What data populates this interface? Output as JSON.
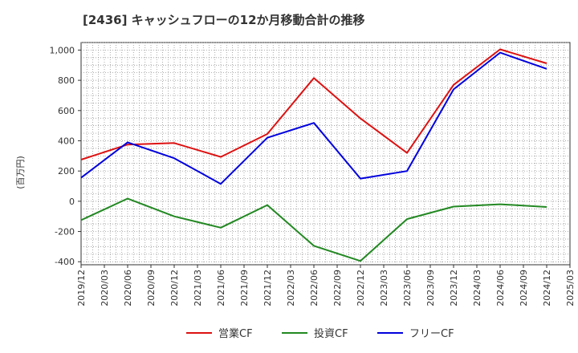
{
  "chart_data": {
    "type": "line",
    "title": "[2436]  キャッシュフローの12か月移動合計の推移",
    "xlabel": "",
    "ylabel": "(百万円)",
    "ylim": [
      -420,
      1050
    ],
    "yticks": [
      -400,
      -200,
      0,
      200,
      400,
      600,
      800,
      "1,000"
    ],
    "x": [
      "2019/12",
      "2020/03",
      "2020/06",
      "2020/09",
      "2020/12",
      "2021/03",
      "2021/06",
      "2021/09",
      "2021/12",
      "2022/03",
      "2022/06",
      "2022/09",
      "2022/12",
      "2023/03",
      "2023/06",
      "2023/09",
      "2023/12",
      "2024/03",
      "2024/06",
      "2024/09",
      "2024/12",
      "2025/03"
    ],
    "grid": true,
    "legend_position": "bottom",
    "series": [
      {
        "name": "営業CF",
        "color": "#dd1111",
        "x": [
          "2019/12",
          "2020/06",
          "2020/12",
          "2021/06",
          "2021/12",
          "2022/06",
          "2022/12",
          "2023/06",
          "2023/12",
          "2024/06",
          "2024/12"
        ],
        "values": [
          275,
          375,
          385,
          293,
          445,
          815,
          548,
          320,
          770,
          1005,
          912
        ]
      },
      {
        "name": "投資CF",
        "color": "#228822",
        "x": [
          "2019/12",
          "2020/06",
          "2020/12",
          "2021/06",
          "2021/12",
          "2022/06",
          "2022/12",
          "2023/06",
          "2023/12",
          "2024/06",
          "2024/12"
        ],
        "values": [
          -125,
          18,
          -100,
          -175,
          -25,
          -295,
          -395,
          -118,
          -35,
          -20,
          -38
        ]
      },
      {
        "name": "フリーCF",
        "color": "#0000dd",
        "x": [
          "2019/12",
          "2020/06",
          "2020/12",
          "2021/06",
          "2021/12",
          "2022/06",
          "2022/12",
          "2023/06",
          "2023/12",
          "2024/06",
          "2024/12"
        ],
        "values": [
          155,
          390,
          285,
          115,
          420,
          518,
          150,
          200,
          740,
          983,
          876
        ]
      }
    ]
  }
}
